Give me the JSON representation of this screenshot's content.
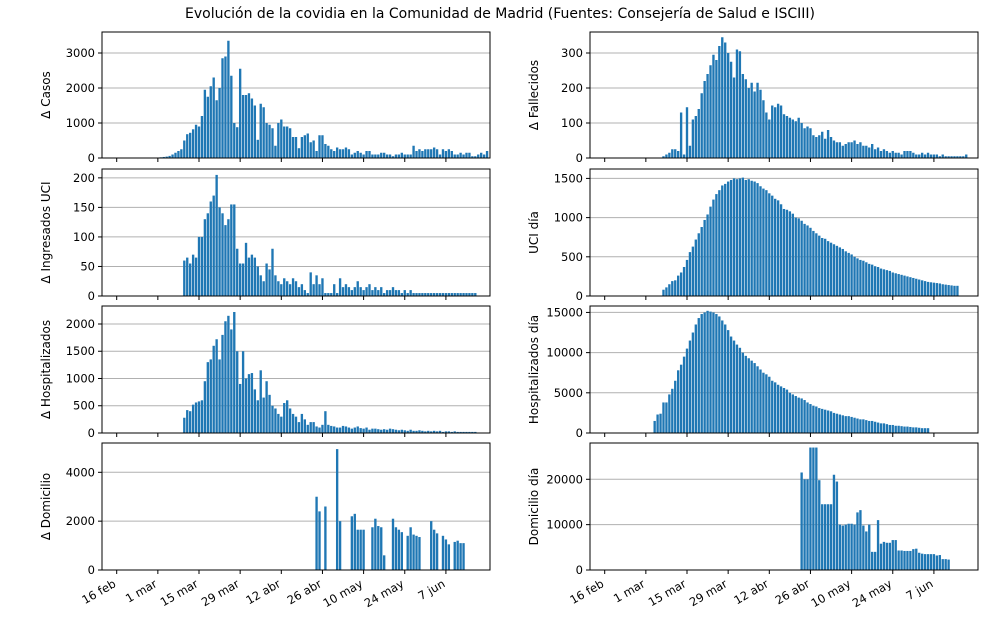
{
  "figure": {
    "title": "Evolución de la covidia en la Comunidad de Madrid (Fuentes: Consejería de Salud e ISCIII)"
  },
  "colors": {
    "bar": "#1f77b4",
    "grid": "#b0b0b0",
    "axis": "#000000"
  },
  "x_axis": {
    "type": "date",
    "range": [
      "2020-02-11",
      "2020-06-22"
    ],
    "ticks": [
      {
        "date": "2020-02-16",
        "label": "16 feb"
      },
      {
        "date": "2020-03-01",
        "label": "1 mar"
      },
      {
        "date": "2020-03-15",
        "label": "15 mar"
      },
      {
        "date": "2020-03-29",
        "label": "29 mar"
      },
      {
        "date": "2020-04-12",
        "label": "12 abr"
      },
      {
        "date": "2020-04-26",
        "label": "26 abr"
      },
      {
        "date": "2020-05-10",
        "label": "10 may"
      },
      {
        "date": "2020-05-24",
        "label": "24 may"
      },
      {
        "date": "2020-06-07",
        "label": "7 jun"
      }
    ]
  },
  "chart_data": [
    {
      "type": "bar",
      "ylabel": "Δ Casos",
      "ylim": [
        0,
        3600
      ],
      "yticks": [
        0,
        1000,
        2000,
        3000
      ],
      "grid": true,
      "start_date": "2020-02-26",
      "values": [
        5,
        5,
        5,
        5,
        10,
        20,
        30,
        40,
        60,
        100,
        150,
        200,
        250,
        500,
        680,
        720,
        820,
        950,
        900,
        1200,
        1950,
        1750,
        2050,
        2300,
        1650,
        2000,
        2850,
        2900,
        3350,
        2350,
        1000,
        880,
        2550,
        1800,
        1800,
        1850,
        1700,
        1500,
        520,
        1550,
        1450,
        1000,
        950,
        850,
        350,
        1000,
        1100,
        900,
        900,
        850,
        600,
        600,
        280,
        600,
        650,
        700,
        450,
        500,
        200,
        650,
        650,
        400,
        350,
        250,
        200,
        300,
        250,
        250,
        300,
        250,
        100,
        150,
        200,
        150,
        100,
        200,
        200,
        100,
        100,
        100,
        150,
        150,
        100,
        100,
        50,
        100,
        100,
        150,
        100,
        100,
        100,
        350,
        200,
        250,
        200,
        250,
        250,
        250,
        300,
        250,
        100,
        250,
        200,
        250,
        200,
        100,
        100,
        150,
        100,
        150,
        150,
        50,
        50,
        100,
        150,
        100,
        200
      ]
    },
    {
      "type": "bar",
      "ylabel": "Δ Fallecidos",
      "ylim": [
        0,
        360
      ],
      "yticks": [
        0,
        100,
        200,
        300
      ],
      "grid": true,
      "start_date": "2020-03-07",
      "values": [
        5,
        10,
        15,
        25,
        25,
        20,
        130,
        10,
        145,
        35,
        110,
        120,
        140,
        185,
        220,
        240,
        265,
        295,
        280,
        320,
        345,
        330,
        300,
        275,
        230,
        310,
        305,
        240,
        225,
        200,
        215,
        190,
        215,
        195,
        165,
        130,
        110,
        150,
        145,
        155,
        150,
        125,
        120,
        115,
        110,
        105,
        115,
        100,
        85,
        90,
        85,
        65,
        60,
        65,
        75,
        55,
        80,
        60,
        50,
        45,
        45,
        35,
        40,
        45,
        45,
        50,
        40,
        45,
        35,
        35,
        30,
        40,
        25,
        30,
        20,
        25,
        20,
        15,
        20,
        15,
        15,
        10,
        20,
        20,
        20,
        15,
        10,
        10,
        15,
        10,
        15,
        10,
        10,
        10,
        5,
        10,
        5,
        5,
        5,
        5,
        5,
        5,
        5,
        10
      ]
    },
    {
      "type": "bar",
      "ylabel": "Δ Ingresados UCI",
      "ylim": [
        0,
        215
      ],
      "yticks": [
        0,
        50,
        100,
        150,
        200
      ],
      "grid": true,
      "start_date": "2020-03-10",
      "values": [
        60,
        65,
        55,
        70,
        65,
        100,
        100,
        130,
        140,
        160,
        170,
        205,
        150,
        140,
        120,
        130,
        155,
        155,
        80,
        55,
        55,
        90,
        65,
        70,
        65,
        50,
        35,
        25,
        55,
        45,
        80,
        35,
        25,
        20,
        30,
        25,
        20,
        30,
        25,
        15,
        20,
        10,
        5,
        40,
        20,
        35,
        20,
        30,
        5,
        5,
        5,
        20,
        5,
        30,
        15,
        20,
        15,
        10,
        15,
        25,
        15,
        10,
        15,
        20,
        10,
        15,
        10,
        15,
        5,
        10,
        10,
        15,
        10,
        10,
        5,
        10,
        5,
        10,
        5,
        5,
        5,
        5,
        5,
        5,
        5,
        5,
        5,
        5,
        5,
        5,
        5,
        5,
        5,
        5,
        5,
        5,
        5,
        5,
        5,
        5
      ]
    },
    {
      "type": "bar",
      "ylabel": "UCI día",
      "ylim": [
        0,
        1620
      ],
      "yticks": [
        0,
        500,
        1000,
        1500
      ],
      "grid": true,
      "start_date": "2020-03-07",
      "values": [
        80,
        110,
        150,
        190,
        200,
        260,
        300,
        370,
        460,
        560,
        630,
        720,
        800,
        880,
        970,
        1040,
        1140,
        1230,
        1300,
        1350,
        1410,
        1430,
        1460,
        1480,
        1500,
        1490,
        1500,
        1510,
        1480,
        1490,
        1470,
        1460,
        1440,
        1400,
        1370,
        1350,
        1310,
        1280,
        1240,
        1220,
        1170,
        1110,
        1100,
        1080,
        1050,
        1000,
        990,
        960,
        920,
        900,
        870,
        830,
        800,
        770,
        740,
        730,
        700,
        680,
        660,
        640,
        620,
        600,
        570,
        550,
        530,
        500,
        480,
        460,
        450,
        430,
        410,
        400,
        380,
        370,
        350,
        340,
        330,
        320,
        300,
        290,
        280,
        270,
        260,
        250,
        240,
        230,
        220,
        210,
        200,
        190,
        180,
        175,
        170,
        165,
        160,
        150,
        145,
        140,
        135,
        130,
        130
      ]
    },
    {
      "type": "bar",
      "ylabel": "Δ Hospitalizados",
      "ylim": [
        0,
        2330
      ],
      "yticks": [
        0,
        500,
        1000,
        1500,
        2000
      ],
      "grid": true,
      "start_date": "2020-03-10",
      "values": [
        280,
        420,
        400,
        520,
        560,
        580,
        600,
        950,
        1300,
        1350,
        1600,
        1720,
        1350,
        1800,
        2050,
        2150,
        1900,
        2220,
        1500,
        900,
        1500,
        1000,
        1080,
        1100,
        800,
        600,
        1150,
        650,
        950,
        700,
        500,
        450,
        350,
        300,
        550,
        600,
        450,
        350,
        300,
        200,
        350,
        250,
        150,
        200,
        200,
        120,
        100,
        150,
        400,
        150,
        130,
        120,
        100,
        100,
        130,
        120,
        100,
        80,
        100,
        120,
        90,
        80,
        100,
        60,
        80,
        80,
        70,
        60,
        70,
        60,
        80,
        70,
        60,
        50,
        60,
        50,
        40,
        60,
        40,
        40,
        50,
        40,
        30,
        40,
        30,
        40,
        30,
        40,
        20,
        30,
        30,
        20,
        30,
        20,
        20,
        20,
        20,
        20,
        20,
        20
      ]
    },
    {
      "type": "bar",
      "ylabel": "Hospitalizados día",
      "ylim": [
        0,
        15800
      ],
      "yticks": [
        0,
        5000,
        10000,
        15000
      ],
      "grid": true,
      "start_date": "2020-03-04",
      "values": [
        1500,
        2300,
        2400,
        3800,
        3800,
        4800,
        5500,
        6500,
        7800,
        8500,
        9500,
        10500,
        11500,
        12500,
        13500,
        14300,
        14800,
        15000,
        15200,
        15100,
        15000,
        14800,
        14500,
        14000,
        13500,
        12800,
        12000,
        11500,
        11000,
        10600,
        10000,
        9600,
        9300,
        9000,
        8700,
        8300,
        7900,
        7500,
        7300,
        7000,
        6500,
        6300,
        6000,
        5800,
        5600,
        5400,
        5000,
        4800,
        4600,
        4400,
        4300,
        4100,
        3800,
        3600,
        3400,
        3300,
        3100,
        3000,
        2900,
        2800,
        2700,
        2500,
        2400,
        2300,
        2200,
        2100,
        2100,
        2000,
        1900,
        1800,
        1700,
        1700,
        1600,
        1500,
        1500,
        1400,
        1300,
        1200,
        1200,
        1100,
        1000,
        1000,
        900,
        900,
        850,
        800,
        800,
        750,
        700,
        700,
        650,
        600,
        600,
        600
      ]
    },
    {
      "type": "bar",
      "ylabel": "Δ Domicilio",
      "ylim": [
        0,
        5200
      ],
      "yticks": [
        0,
        2000,
        4000
      ],
      "grid": true,
      "start_date": "2020-04-22",
      "values": [
        0,
        0,
        3000,
        2400,
        0,
        2600,
        0,
        0,
        0,
        4950,
        2000,
        0,
        0,
        0,
        2200,
        2300,
        1650,
        1650,
        1650,
        0,
        0,
        1750,
        2100,
        1800,
        1750,
        600,
        0,
        0,
        2100,
        1750,
        1650,
        1550,
        0,
        1400,
        1750,
        1450,
        1400,
        1350,
        0,
        0,
        0,
        2000,
        1650,
        1500,
        0,
        1400,
        1250,
        1050,
        0,
        1150,
        1200,
        1100,
        1100
      ]
    },
    {
      "type": "bar",
      "ylabel": "Domicilio día",
      "ylim": [
        0,
        28000
      ],
      "yticks": [
        0,
        10000,
        20000
      ],
      "grid": true,
      "start_date": "2020-04-23",
      "values": [
        21500,
        20000,
        20000,
        27000,
        27000,
        27000,
        19800,
        14500,
        14500,
        14500,
        14500,
        21000,
        19500,
        10000,
        9800,
        10000,
        10200,
        10200,
        10000,
        12700,
        13200,
        9800,
        8500,
        10000,
        4000,
        4000,
        11000,
        5800,
        6200,
        6000,
        6000,
        6600,
        6600,
        4300,
        4300,
        4200,
        4200,
        4200,
        4600,
        4700,
        3800,
        3600,
        3500,
        3500,
        3500,
        3500,
        3200,
        3300,
        2400,
        2400,
        2300
      ]
    }
  ]
}
